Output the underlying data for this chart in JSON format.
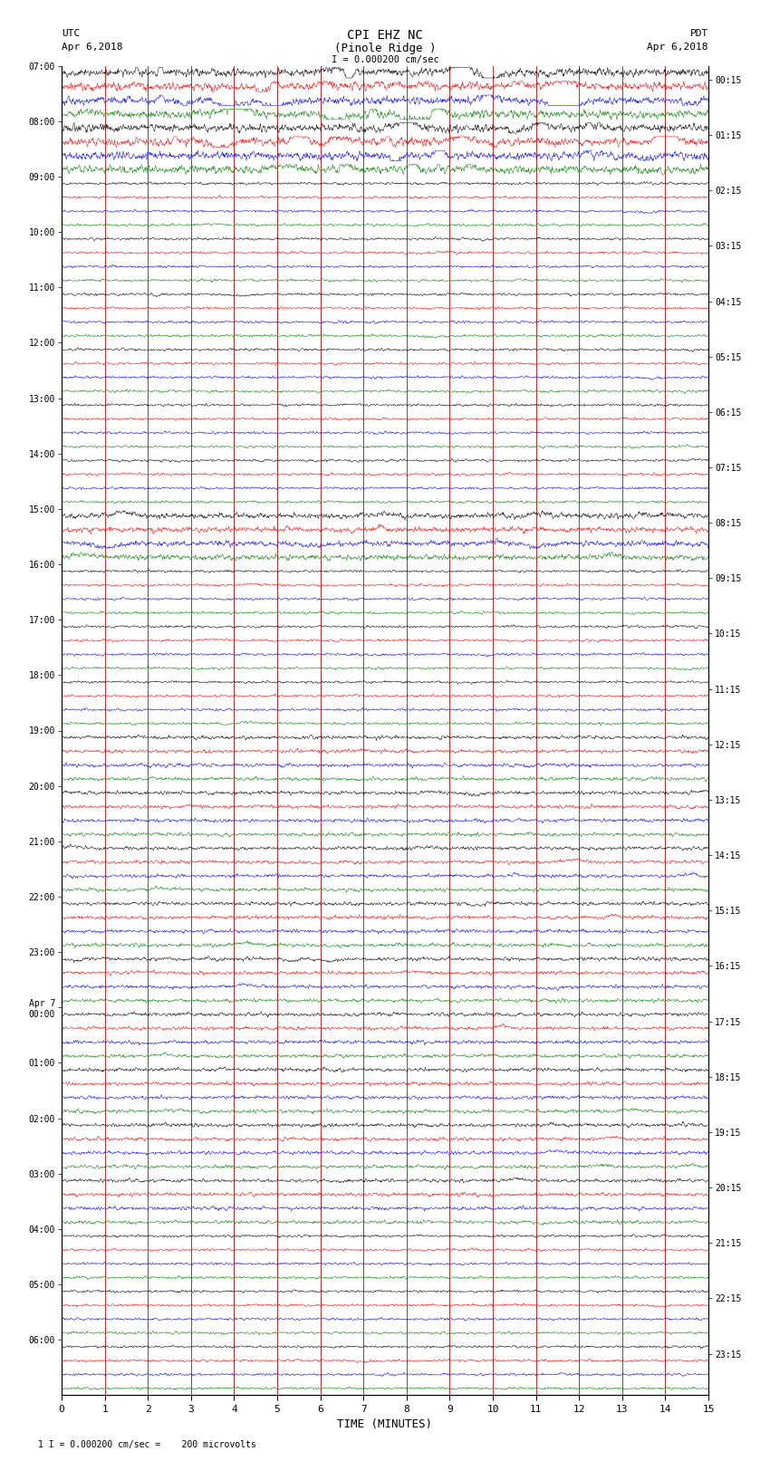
{
  "title_line1": "CPI EHZ NC",
  "title_line2": "(Pinole Ridge )",
  "scale_text": "I = 0.000200 cm/sec",
  "footer_text": "1 I = 0.000200 cm/sec =    200 microvolts",
  "utc_label": "UTC",
  "utc_date": "Apr 6,2018",
  "pdt_label": "PDT",
  "pdt_date": "Apr 6,2018",
  "xlabel": "TIME (MINUTES)",
  "left_times": [
    "07:00",
    "08:00",
    "09:00",
    "10:00",
    "11:00",
    "12:00",
    "13:00",
    "14:00",
    "15:00",
    "16:00",
    "17:00",
    "18:00",
    "19:00",
    "20:00",
    "21:00",
    "22:00",
    "23:00",
    "Apr 7\n00:00",
    "01:00",
    "02:00",
    "03:00",
    "04:00",
    "05:00",
    "06:00"
  ],
  "right_times": [
    "00:15",
    "01:15",
    "02:15",
    "03:15",
    "04:15",
    "05:15",
    "06:15",
    "07:15",
    "08:15",
    "09:15",
    "10:15",
    "11:15",
    "12:15",
    "13:15",
    "14:15",
    "15:15",
    "16:15",
    "17:15",
    "18:15",
    "19:15",
    "20:15",
    "21:15",
    "22:15",
    "23:15"
  ],
  "colors": [
    "black",
    "red",
    "blue",
    "green"
  ],
  "n_rows": 96,
  "n_minutes": 15,
  "background_color": "white",
  "grid_color": "#cc0000",
  "seed": 42
}
